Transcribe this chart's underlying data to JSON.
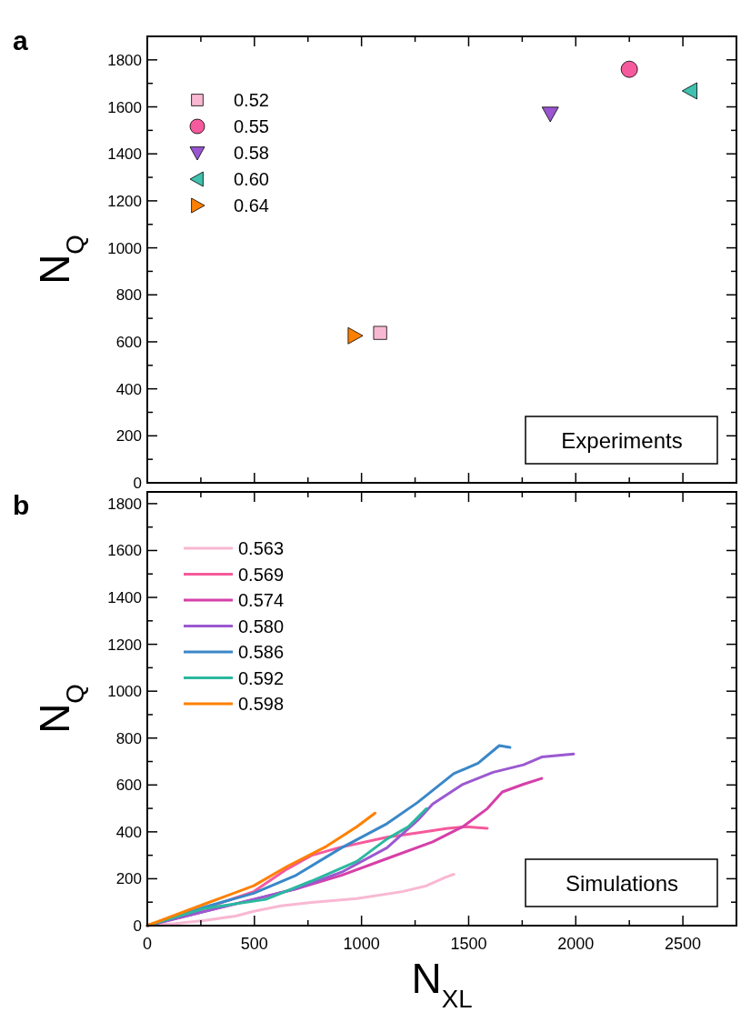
{
  "chart_data": [
    {
      "type": "scatter",
      "ylabel": "N$_{Q}$",
      "annotations": [
        "a",
        "Experiments"
      ],
      "xlim": [
        0,
        2750
      ],
      "ylim": [
        0,
        1900
      ],
      "xticks": [
        0,
        {
          "value": 250,
          "label": null
        },
        500,
        {
          "value": 750,
          "label": null
        },
        1000,
        {
          "value": 1250,
          "label": null
        },
        1500,
        {
          "value": 1750,
          "label": null
        },
        2000,
        {
          "value": 2250,
          "label": null
        },
        2500
      ],
      "yticks": [
        0,
        {
          "value": 100,
          "label": null
        },
        200,
        {
          "value": 300,
          "label": null
        },
        400,
        {
          "value": 500,
          "label": null
        },
        600,
        {
          "value": 700,
          "label": null
        },
        800,
        {
          "value": 900,
          "label": null
        },
        1000,
        {
          "value": 1100,
          "label": null
        },
        1200,
        {
          "value": 1300,
          "label": null
        },
        1400,
        {
          "value": 1500,
          "label": null
        },
        1600,
        {
          "value": 1700,
          "label": null
        },
        1800
      ],
      "tick_labels": "y",
      "legend": "top left",
      "series": [
        {
          "name": "0.52",
          "color": "#f9b8d2",
          "marker": "square",
          "x": [
            1087
          ],
          "values": [
            638
          ]
        },
        {
          "name": "0.55",
          "color": "#f55a9c",
          "marker": "circle",
          "x": [
            2250
          ],
          "values": [
            1760
          ]
        },
        {
          "name": "0.58",
          "color": "#9b55d0",
          "marker": "triangle-down",
          "x": [
            1881
          ],
          "values": [
            1571
          ]
        },
        {
          "name": "0.60",
          "color": "#3ec1ae",
          "marker": "triangle-left",
          "x": [
            2535
          ],
          "values": [
            1668
          ]
        },
        {
          "name": "0.64",
          "color": "#ff8000",
          "marker": "triangle-right",
          "x": [
            968
          ],
          "values": [
            626
          ]
        }
      ]
    },
    {
      "type": "line",
      "xlabel": "N$_{XL}$",
      "ylabel": "N$_{Q}$",
      "annotations": [
        "b",
        "Simulations"
      ],
      "xlim": [
        0,
        2750
      ],
      "ylim": [
        0,
        1850
      ],
      "xticks": [
        0,
        {
          "value": 250,
          "label": null
        },
        500,
        {
          "value": 750,
          "label": null
        },
        1000,
        {
          "value": 1250,
          "label": null
        },
        1500,
        {
          "value": 1750,
          "label": null
        },
        2000,
        {
          "value": 2250,
          "label": null
        },
        2500
      ],
      "yticks": [
        0,
        {
          "value": 100,
          "label": null
        },
        200,
        {
          "value": 300,
          "label": null
        },
        400,
        {
          "value": 500,
          "label": null
        },
        600,
        {
          "value": 700,
          "label": null
        },
        800,
        {
          "value": 900,
          "label": null
        },
        1000,
        {
          "value": 1100,
          "label": null
        },
        1200,
        {
          "value": 1300,
          "label": null
        },
        1400,
        {
          "value": 1500,
          "label": null
        },
        1600,
        {
          "value": 1700,
          "label": null
        },
        1800
      ],
      "legend": "top left",
      "series": [
        {
          "name": "0.563",
          "color": "#f9b8d2",
          "x": [
            0,
            129,
            270,
            412,
            497,
            624,
            766,
            978,
            1190,
            1303,
            1389,
            1431
          ],
          "values": [
            0,
            9,
            22,
            41,
            61,
            84,
            99,
            115,
            145,
            170,
            205,
            219
          ]
        },
        {
          "name": "0.569",
          "color": "#f55a9c",
          "x": [
            0,
            270,
            497,
            652,
            766,
            893,
            1119,
            1261,
            1402,
            1487,
            1587
          ],
          "values": [
            0,
            74,
            145,
            241,
            299,
            332,
            377,
            396,
            415,
            422,
            415
          ]
        },
        {
          "name": "0.574",
          "color": "#d63fa8",
          "x": [
            0,
            497,
            695,
            907,
            1119,
            1332,
            1473,
            1587,
            1657,
            1756,
            1841
          ],
          "values": [
            0,
            112,
            157,
            215,
            286,
            357,
            422,
            499,
            570,
            603,
            628
          ]
        },
        {
          "name": "0.580",
          "color": "#9b59d0",
          "x": [
            0,
            497,
            695,
            907,
            1119,
            1261,
            1332,
            1473,
            1614,
            1756,
            1841,
            1990
          ],
          "values": [
            0,
            112,
            157,
            228,
            332,
            448,
            519,
            603,
            654,
            686,
            719,
            732
          ]
        },
        {
          "name": "0.586",
          "color": "#3a87c8",
          "x": [
            0,
            270,
            497,
            695,
            907,
            1119,
            1261,
            1430,
            1544,
            1643,
            1693
          ],
          "values": [
            0,
            80,
            138,
            215,
            332,
            435,
            525,
            648,
            693,
            768,
            760
          ]
        },
        {
          "name": "0.592",
          "color": "#2bb8a0",
          "x": [
            0,
            270,
            553,
            766,
            978,
            1119,
            1218,
            1303
          ],
          "values": [
            0,
            74,
            112,
            190,
            274,
            370,
            422,
            499
          ]
        },
        {
          "name": "0.598",
          "color": "#ff8000",
          "x": [
            0,
            270,
            497,
            652,
            836,
            978,
            1063
          ],
          "values": [
            0,
            93,
            170,
            252,
            338,
            422,
            480
          ]
        }
      ]
    }
  ]
}
